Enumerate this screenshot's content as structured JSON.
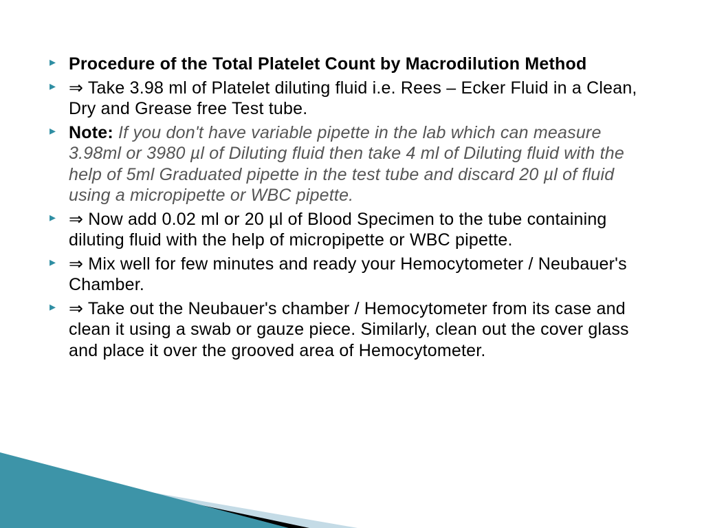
{
  "slide": {
    "bullets": [
      {
        "type": "title",
        "text": "Procedure of the Total Platelet Count by Macrodilution Method"
      },
      {
        "type": "step",
        "text": "⇒ Take 3.98 ml of Platelet diluting fluid i.e. Rees – Ecker Fluid in a Clean, Dry and Grease free Test tube."
      },
      {
        "type": "note",
        "label": "Note",
        "text": "If you don't have variable pipette in the lab which can measure 3.98ml or 3980 µl of Diluting fluid then take 4 ml of Diluting fluid with the help of 5ml Graduated pipette in the test tube and discard 20 µl of fluid using a micropipette or WBC pipette."
      },
      {
        "type": "step",
        "text": "⇒ Now add 0.02 ml or 20 µl of Blood Specimen to the tube containing diluting fluid with the help of micropipette or WBC pipette."
      },
      {
        "type": "step",
        "text": "⇒ Mix well for few minutes and ready your Hemocytometer / Neubauer's Chamber."
      },
      {
        "type": "step",
        "text": "⇒ Take out the Neubauer's chamber / Hemocytometer from its case and clean it using a swab or gauze piece. Similarly, clean out the cover glass and place it over the grooved area of Hemocytometer."
      }
    ]
  },
  "style": {
    "bullet_marker_color": "#2f8ea3",
    "body_text_color": "#000000",
    "note_italic_color": "#555555",
    "body_font_size_pt": 19,
    "wedge_colors": {
      "teal": "#3d94a8",
      "black": "#000000",
      "lightblue": "#c4dbe6"
    },
    "background_color": "#ffffff"
  }
}
